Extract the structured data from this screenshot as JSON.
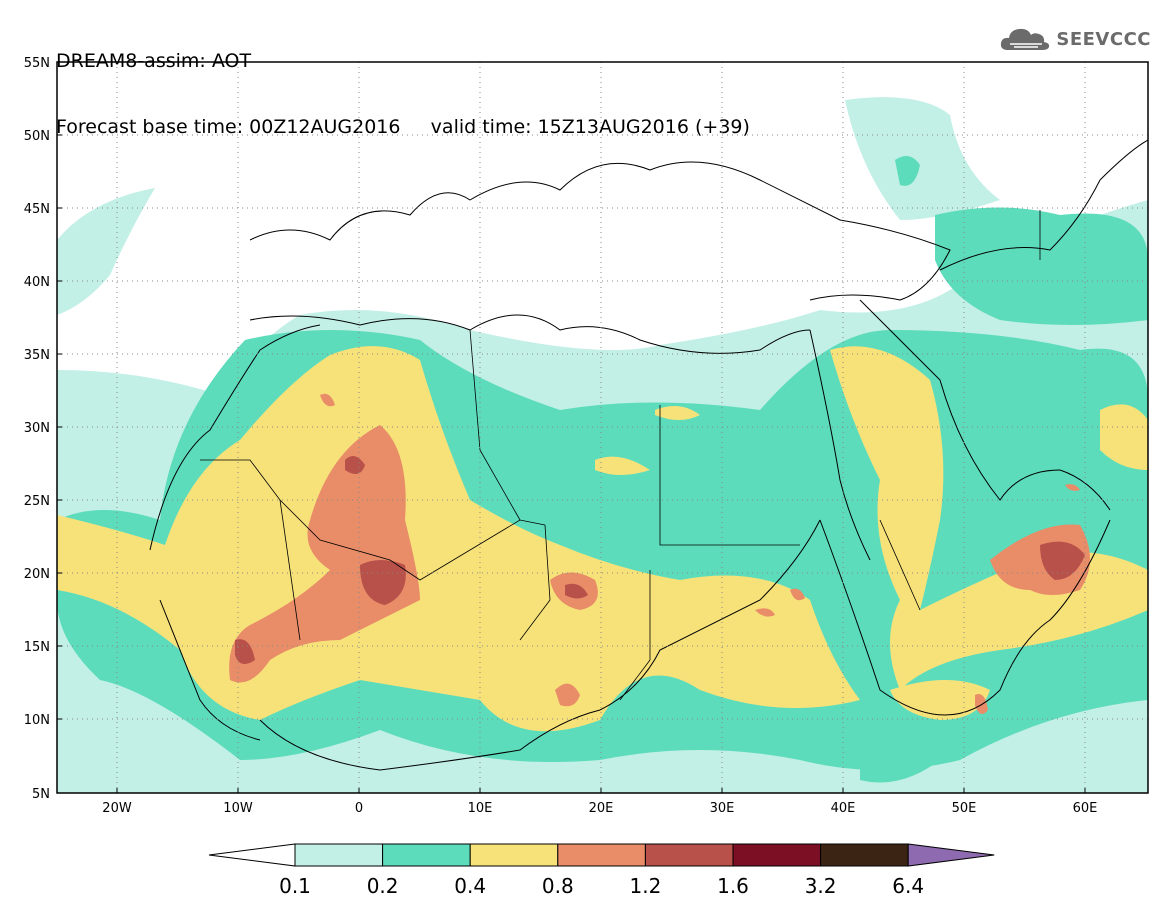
{
  "header": {
    "title_line1": "DREAM8-assim: AOT",
    "title_line2": "Forecast base time: 00Z12AUG2016     valid time: 15Z13AUG2016 (+39)",
    "logo_text": "SEEVCCC"
  },
  "map": {
    "lat_labels": [
      "55N",
      "50N",
      "45N",
      "40N",
      "35N",
      "30N",
      "25N",
      "20N",
      "15N",
      "10N",
      "5N"
    ],
    "lon_labels": [
      "20W",
      "10W",
      "0",
      "10E",
      "20E",
      "30E",
      "40E",
      "50E",
      "60E"
    ]
  },
  "colorbar": {
    "labels": [
      "0.1",
      "0.2",
      "0.4",
      "0.8",
      "1.2",
      "1.6",
      "3.2",
      "6.4"
    ],
    "colors": [
      "#ffffff",
      "#c2efe6",
      "#5ddcbc",
      "#f7e27a",
      "#e98c68",
      "#b8514a",
      "#7d0f25",
      "#3b2414",
      "#8e6bb0"
    ]
  }
}
